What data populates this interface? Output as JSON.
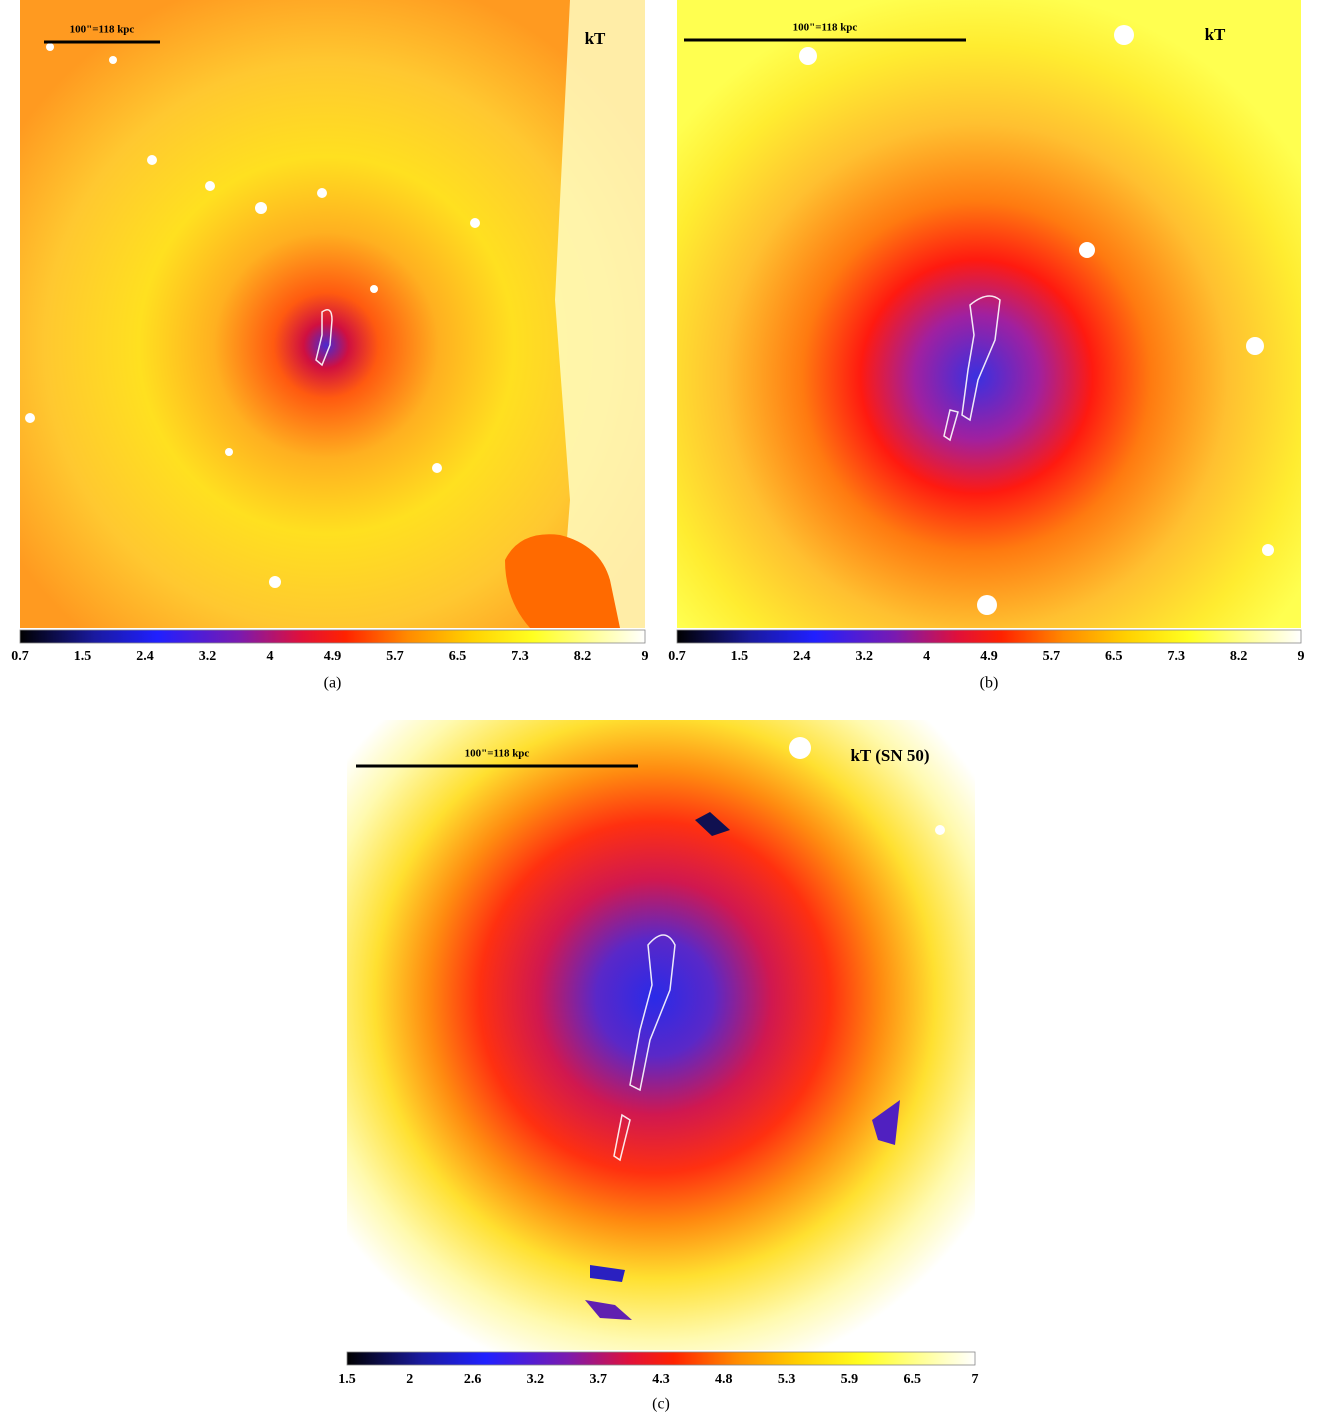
{
  "panels": [
    {
      "scale_label": "100\"=118 kpc",
      "label": "kT",
      "colorbar_ticks": [
        0.7,
        1.5,
        2.4,
        3.2,
        4,
        4.9,
        5.7,
        6.5,
        7.3,
        8.2,
        9
      ],
      "caption": "(a)"
    },
    {
      "scale_label": "100\"=118 kpc",
      "label": "kT",
      "colorbar_ticks": [
        0.7,
        1.5,
        2.4,
        3.2,
        4,
        4.9,
        5.7,
        6.5,
        7.3,
        8.2,
        9
      ],
      "caption": "(b)"
    },
    {
      "scale_label": "100\"=118 kpc",
      "label": "kT (SN 50)",
      "colorbar_ticks": [
        1.5,
        2,
        2.6,
        3.2,
        3.7,
        4.3,
        4.8,
        5.3,
        5.9,
        6.5,
        7
      ],
      "caption": "(c)"
    }
  ]
}
